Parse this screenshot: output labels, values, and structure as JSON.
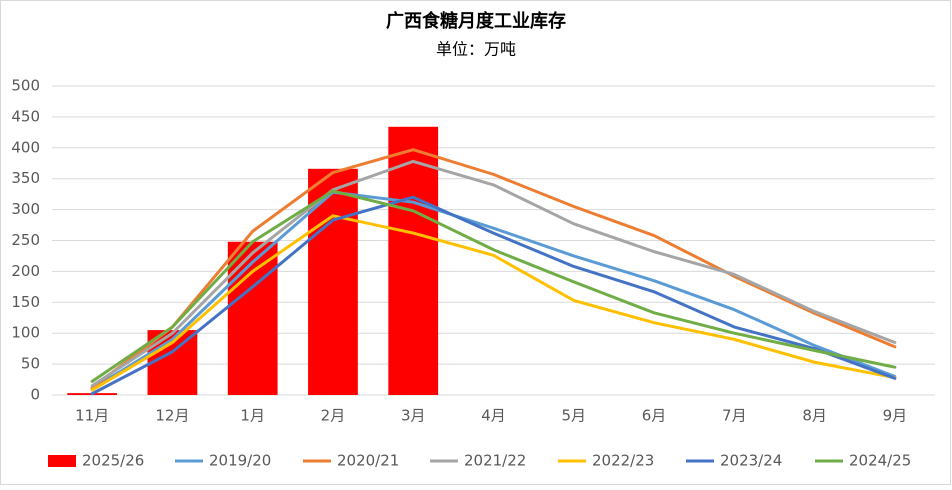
{
  "chart_data": {
    "type": "combo",
    "title": "广西食糖月度工业库存",
    "subtitle": "单位：万吨",
    "categories": [
      "11月",
      "12月",
      "1月",
      "2月",
      "3月",
      "4月",
      "5月",
      "6月",
      "7月",
      "8月",
      "9月"
    ],
    "ylim": [
      0,
      500
    ],
    "yticks": [
      0,
      50,
      100,
      150,
      200,
      250,
      300,
      350,
      400,
      450,
      500
    ],
    "grid": true,
    "legend": "bottom",
    "series": [
      {
        "name": "2025/26",
        "type": "bar",
        "color": "#ff0000",
        "values": [
          3,
          105,
          248,
          366,
          434,
          null,
          null,
          null,
          null,
          null,
          null
        ]
      },
      {
        "name": "2019/20",
        "type": "line",
        "color": "#5b9bd5",
        "values": [
          10,
          90,
          215,
          328,
          312,
          270,
          225,
          185,
          138,
          80,
          30
        ]
      },
      {
        "name": "2020/21",
        "type": "line",
        "color": "#ed7d31",
        "values": [
          12,
          110,
          265,
          360,
          397,
          357,
          305,
          258,
          192,
          132,
          78
        ]
      },
      {
        "name": "2021/22",
        "type": "line",
        "color": "#a5a5a5",
        "values": [
          15,
          100,
          230,
          332,
          378,
          340,
          277,
          232,
          195,
          135,
          85
        ]
      },
      {
        "name": "2022/23",
        "type": "line",
        "color": "#ffc000",
        "values": [
          8,
          85,
          200,
          290,
          262,
          226,
          153,
          117,
          90,
          53,
          28
        ]
      },
      {
        "name": "2023/24",
        "type": "line",
        "color": "#4472c4",
        "values": [
          2,
          70,
          175,
          283,
          320,
          262,
          208,
          167,
          110,
          75,
          27
        ]
      },
      {
        "name": "2024/25",
        "type": "line",
        "color": "#70ad47",
        "values": [
          22,
          110,
          248,
          330,
          298,
          235,
          183,
          133,
          100,
          72,
          45
        ]
      }
    ]
  }
}
